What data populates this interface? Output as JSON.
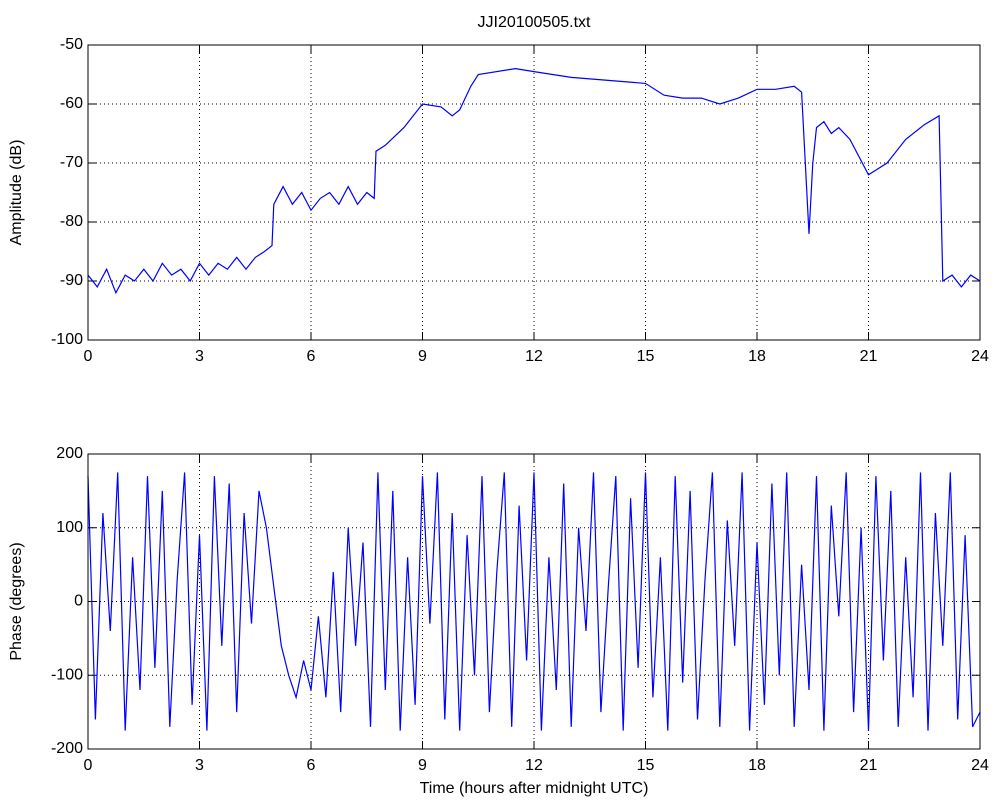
{
  "chart_data": [
    {
      "type": "line",
      "title": "JJI20100505.txt",
      "y_label": "Amplitude (dB)",
      "xlim": [
        0,
        24
      ],
      "xticks": [
        0,
        3,
        6,
        9,
        12,
        15,
        18,
        21,
        24
      ],
      "ylim": [
        -100,
        -50
      ],
      "yticks": [
        -100,
        -90,
        -80,
        -70,
        -60,
        -50
      ],
      "grid": true,
      "series": [
        {
          "name": "Amplitude",
          "color": "#0000ff",
          "x": [
            0,
            0.25,
            0.5,
            0.75,
            1,
            1.25,
            1.5,
            1.75,
            2,
            2.25,
            2.5,
            2.75,
            3,
            3.25,
            3.5,
            3.75,
            4,
            4.25,
            4.5,
            4.75,
            4.95,
            5,
            5.25,
            5.5,
            5.75,
            6,
            6.25,
            6.5,
            6.75,
            7,
            7.25,
            7.5,
            7.7,
            7.75,
            8,
            8.5,
            9,
            9.5,
            9.8,
            10,
            10.3,
            10.5,
            11.5,
            12,
            13,
            14,
            15,
            15.5,
            16,
            16.5,
            17,
            17.5,
            18,
            18.5,
            19,
            19.2,
            19.3,
            19.4,
            19.5,
            19.6,
            19.8,
            20,
            20.2,
            20.5,
            21,
            21.5,
            22,
            22.5,
            22.9,
            23,
            23.25,
            23.5,
            23.75,
            24
          ],
          "values": [
            -89,
            -91,
            -88,
            -92,
            -89,
            -90,
            -88,
            -90,
            -87,
            -89,
            -88,
            -90,
            -87,
            -89,
            -87,
            -88,
            -86,
            -88,
            -86,
            -85,
            -84,
            -77,
            -74,
            -77,
            -75,
            -78,
            -76,
            -75,
            -77,
            -74,
            -77,
            -75,
            -76,
            -68,
            -67,
            -64,
            -60,
            -60.5,
            -62,
            -61,
            -57,
            -55,
            -54,
            -54.5,
            -55.5,
            -56,
            -56.5,
            -58.5,
            -59,
            -59,
            -60,
            -59,
            -57.5,
            -57.5,
            -57,
            -58,
            -70,
            -82,
            -70,
            -64,
            -63,
            -65,
            -64,
            -66,
            -72,
            -70,
            -66,
            -63.5,
            -62,
            -90,
            -89,
            -91,
            -89,
            -90
          ]
        }
      ]
    },
    {
      "type": "line",
      "x_label": "Time (hours after midnight UTC)",
      "y_label": "Phase (degrees)",
      "xlim": [
        0,
        24
      ],
      "xticks": [
        0,
        3,
        6,
        9,
        12,
        15,
        18,
        21,
        24
      ],
      "ylim": [
        -200,
        200
      ],
      "yticks": [
        -200,
        -100,
        0,
        100,
        200
      ],
      "grid": true,
      "series": [
        {
          "name": "Phase",
          "color": "#0000ff",
          "x": [
            0,
            0.2,
            0.4,
            0.6,
            0.8,
            1,
            1.2,
            1.4,
            1.6,
            1.8,
            2,
            2.2,
            2.4,
            2.6,
            2.8,
            3,
            3.2,
            3.4,
            3.6,
            3.8,
            4,
            4.2,
            4.4,
            4.6,
            4.8,
            5,
            5.2,
            5.4,
            5.6,
            5.8,
            6,
            6.2,
            6.4,
            6.6,
            6.8,
            7,
            7.2,
            7.4,
            7.6,
            7.8,
            8,
            8.2,
            8.4,
            8.6,
            8.8,
            9,
            9.2,
            9.4,
            9.6,
            9.8,
            10,
            10.2,
            10.4,
            10.6,
            10.8,
            11,
            11.2,
            11.4,
            11.6,
            11.8,
            12,
            12.2,
            12.4,
            12.6,
            12.8,
            13,
            13.2,
            13.4,
            13.6,
            13.8,
            14,
            14.2,
            14.4,
            14.6,
            14.8,
            15,
            15.2,
            15.4,
            15.6,
            15.8,
            16,
            16.2,
            16.4,
            16.6,
            16.8,
            17,
            17.2,
            17.4,
            17.6,
            17.8,
            18,
            18.2,
            18.4,
            18.6,
            18.8,
            19,
            19.2,
            19.4,
            19.6,
            19.8,
            20,
            20.2,
            20.4,
            20.6,
            20.8,
            21,
            21.2,
            21.4,
            21.6,
            21.8,
            22,
            22.2,
            22.4,
            22.6,
            22.8,
            23,
            23.2,
            23.4,
            23.6,
            23.8,
            24
          ],
          "values": [
            170,
            -160,
            120,
            -40,
            175,
            -175,
            60,
            -120,
            170,
            -90,
            150,
            -170,
            30,
            175,
            -140,
            90,
            -175,
            170,
            -60,
            160,
            -150,
            120,
            -30,
            150,
            100,
            20,
            -60,
            -100,
            -130,
            -80,
            -120,
            -20,
            -130,
            40,
            -150,
            100,
            -60,
            80,
            -170,
            175,
            -120,
            150,
            -175,
            60,
            -140,
            170,
            -30,
            175,
            -160,
            120,
            -175,
            90,
            -100,
            170,
            -150,
            40,
            175,
            -170,
            130,
            -80,
            175,
            -175,
            60,
            -120,
            160,
            -170,
            100,
            -40,
            175,
            -150,
            20,
            170,
            -175,
            140,
            -90,
            175,
            -130,
            60,
            -175,
            170,
            -110,
            150,
            -160,
            30,
            175,
            -170,
            110,
            -60,
            175,
            -175,
            80,
            -140,
            160,
            -100,
            175,
            -170,
            50,
            -120,
            170,
            -175,
            130,
            -20,
            175,
            -150,
            100,
            -175,
            170,
            -80,
            150,
            -170,
            60,
            -130,
            175,
            -175,
            120,
            -60,
            175,
            -160,
            90,
            -170,
            -150
          ]
        }
      ]
    }
  ]
}
